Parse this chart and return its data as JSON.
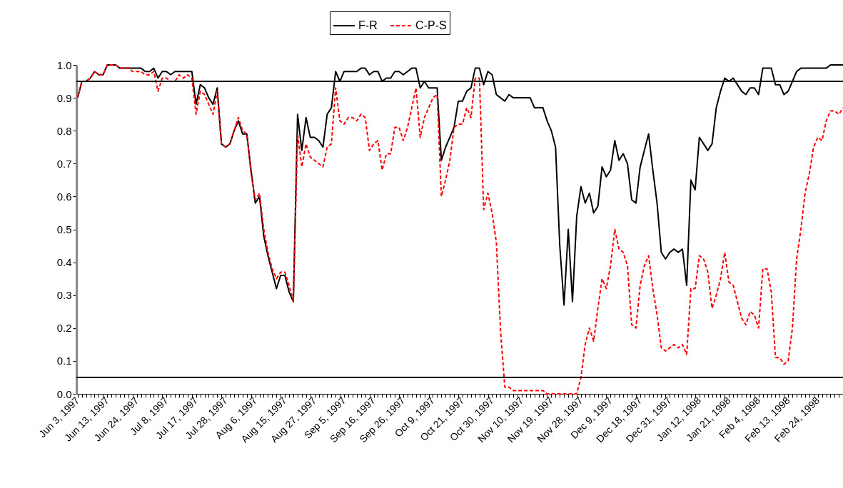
{
  "chart_data": {
    "type": "line",
    "categories": [
      "Jun 3, 1997",
      null,
      null,
      null,
      null,
      null,
      null,
      "Jun 13, 1997",
      null,
      null,
      null,
      null,
      null,
      null,
      "Jun 24, 1997",
      null,
      null,
      null,
      null,
      null,
      null,
      "Jul 8, 1997",
      null,
      null,
      null,
      null,
      null,
      null,
      "Jul 17, 1997",
      null,
      null,
      null,
      null,
      null,
      null,
      "Jul 28, 1997",
      null,
      null,
      null,
      null,
      null,
      null,
      "Aug 6, 1997",
      null,
      null,
      null,
      null,
      null,
      null,
      "Aug 15, 1997",
      null,
      null,
      null,
      null,
      null,
      null,
      "Aug 27, 1997",
      null,
      null,
      null,
      null,
      null,
      null,
      "Sep 5, 1997",
      null,
      null,
      null,
      null,
      null,
      null,
      "Sep 16, 1997",
      null,
      null,
      null,
      null,
      null,
      null,
      "Sep 26, 1997",
      null,
      null,
      null,
      null,
      null,
      null,
      "Oct 9, 1997",
      null,
      null,
      null,
      null,
      null,
      null,
      "Oct 21, 1997",
      null,
      null,
      null,
      null,
      null,
      null,
      "Oct 30, 1997",
      null,
      null,
      null,
      null,
      null,
      null,
      "Nov 10, 1997",
      null,
      null,
      null,
      null,
      null,
      null,
      "Nov 19, 1997",
      null,
      null,
      null,
      null,
      null,
      null,
      "Nov 28, 1997",
      null,
      null,
      null,
      null,
      null,
      null,
      "Dec 9, 1997",
      null,
      null,
      null,
      null,
      null,
      null,
      "Dec 18, 1997",
      null,
      null,
      null,
      null,
      null,
      null,
      "Dec 31, 1997",
      null,
      null,
      null,
      null,
      null,
      null,
      "Jan 12, 1998",
      null,
      null,
      null,
      null,
      null,
      null,
      "Jan 21, 1998",
      null,
      null,
      null,
      null,
      null,
      null,
      "Feb 4, 1998",
      null,
      null,
      null,
      null,
      null,
      null,
      "Feb 13, 1998",
      null,
      null,
      null,
      null,
      null,
      null,
      "Feb 24, 1998",
      null,
      null,
      null,
      null,
      null,
      null
    ],
    "series": [
      {
        "name": "F-R",
        "color": "#000000",
        "line_style": "solid",
        "values": [
          0.9,
          0.95,
          0.95,
          0.96,
          0.98,
          0.97,
          0.97,
          1.0,
          1.0,
          1.0,
          0.99,
          0.99,
          0.99,
          0.99,
          0.99,
          0.99,
          0.98,
          0.98,
          0.99,
          0.96,
          0.98,
          0.98,
          0.97,
          0.98,
          0.98,
          0.98,
          0.98,
          0.98,
          0.88,
          0.94,
          0.93,
          0.9,
          0.88,
          0.93,
          0.76,
          0.75,
          0.76,
          0.8,
          0.83,
          0.79,
          0.79,
          0.68,
          0.58,
          0.6,
          0.48,
          0.42,
          0.37,
          0.32,
          0.36,
          0.36,
          0.31,
          0.28,
          0.85,
          0.74,
          0.84,
          0.78,
          0.78,
          0.77,
          0.75,
          0.85,
          0.87,
          0.98,
          0.95,
          0.98,
          0.98,
          0.98,
          0.98,
          0.99,
          0.99,
          0.97,
          0.98,
          0.98,
          0.95,
          0.96,
          0.96,
          0.98,
          0.98,
          0.97,
          0.98,
          0.99,
          0.99,
          0.93,
          0.95,
          0.93,
          0.93,
          0.93,
          0.71,
          0.75,
          0.78,
          0.81,
          0.89,
          0.89,
          0.92,
          0.93,
          0.99,
          0.99,
          0.94,
          0.98,
          0.97,
          0.91,
          0.9,
          0.89,
          0.91,
          0.9,
          0.9,
          0.9,
          0.9,
          0.9,
          0.87,
          0.87,
          0.87,
          0.83,
          0.8,
          0.75,
          0.45,
          0.27,
          0.5,
          0.28,
          0.54,
          0.63,
          0.58,
          0.61,
          0.55,
          0.57,
          0.69,
          0.66,
          0.68,
          0.77,
          0.71,
          0.73,
          0.7,
          0.59,
          0.58,
          0.69,
          0.74,
          0.79,
          0.68,
          0.58,
          0.43,
          0.41,
          0.43,
          0.44,
          0.43,
          0.44,
          0.33,
          0.65,
          0.62,
          0.78,
          0.76,
          0.74,
          0.76,
          0.87,
          0.92,
          0.96,
          0.95,
          0.96,
          0.94,
          0.92,
          0.91,
          0.93,
          0.93,
          0.91,
          0.99,
          0.99,
          0.99,
          0.94,
          0.94,
          0.91,
          0.92,
          0.95,
          0.98,
          0.99,
          0.99,
          0.99,
          0.99,
          0.99,
          0.99,
          0.99,
          1.0,
          1.0,
          1.0,
          1.0
        ]
      },
      {
        "name": "C-P-S",
        "color": "#ff0000",
        "line_style": "dashed",
        "values": [
          0.9,
          0.95,
          0.95,
          0.96,
          0.98,
          0.97,
          0.97,
          1.0,
          1.0,
          1.0,
          0.99,
          0.99,
          0.99,
          0.98,
          0.98,
          0.98,
          0.97,
          0.97,
          0.98,
          0.92,
          0.96,
          0.96,
          0.95,
          0.95,
          0.97,
          0.96,
          0.97,
          0.96,
          0.85,
          0.92,
          0.91,
          0.88,
          0.85,
          0.92,
          0.76,
          0.75,
          0.76,
          0.8,
          0.84,
          0.8,
          0.79,
          0.67,
          0.59,
          0.61,
          0.5,
          0.43,
          0.38,
          0.35,
          0.37,
          0.37,
          0.33,
          0.28,
          0.79,
          0.69,
          0.76,
          0.72,
          0.71,
          0.7,
          0.69,
          0.75,
          0.76,
          0.93,
          0.83,
          0.82,
          0.84,
          0.84,
          0.83,
          0.85,
          0.84,
          0.74,
          0.76,
          0.77,
          0.68,
          0.73,
          0.73,
          0.81,
          0.81,
          0.77,
          0.81,
          0.87,
          0.93,
          0.78,
          0.84,
          0.87,
          0.9,
          0.91,
          0.6,
          0.65,
          0.71,
          0.81,
          0.82,
          0.82,
          0.87,
          0.84,
          0.96,
          0.96,
          0.56,
          0.61,
          0.55,
          0.46,
          0.19,
          0.02,
          0.02,
          0.01,
          0.01,
          0.01,
          0.01,
          0.01,
          0.01,
          0.01,
          0.01,
          0.0,
          0.0,
          0.0,
          0.0,
          0.0,
          0.0,
          0.0,
          0.0,
          0.05,
          0.15,
          0.2,
          0.16,
          0.26,
          0.35,
          0.32,
          0.39,
          0.5,
          0.44,
          0.43,
          0.39,
          0.21,
          0.2,
          0.33,
          0.39,
          0.42,
          0.32,
          0.24,
          0.14,
          0.13,
          0.14,
          0.15,
          0.14,
          0.15,
          0.12,
          0.32,
          0.32,
          0.42,
          0.41,
          0.37,
          0.26,
          0.3,
          0.35,
          0.43,
          0.34,
          0.33,
          0.28,
          0.23,
          0.21,
          0.25,
          0.24,
          0.2,
          0.38,
          0.38,
          0.31,
          0.11,
          0.11,
          0.09,
          0.1,
          0.2,
          0.41,
          0.5,
          0.61,
          0.67,
          0.75,
          0.78,
          0.77,
          0.83,
          0.86,
          0.86,
          0.85,
          0.87
        ]
      }
    ],
    "ylim": [
      0,
      1
    ],
    "yticks": [
      {
        "value": 0,
        "label": "0.0"
      },
      0.1,
      0.2,
      0.3,
      0.4,
      0.5,
      0.6,
      0.7,
      0.8,
      0.9,
      {
        "value": 1,
        "label": "1.0"
      }
    ],
    "ref_lines": [
      {
        "axis": "y",
        "value": 0.95,
        "color": "#000000"
      },
      {
        "axis": "y",
        "value": 0.05,
        "color": "#000000"
      }
    ],
    "grid": false,
    "legend": "top"
  }
}
